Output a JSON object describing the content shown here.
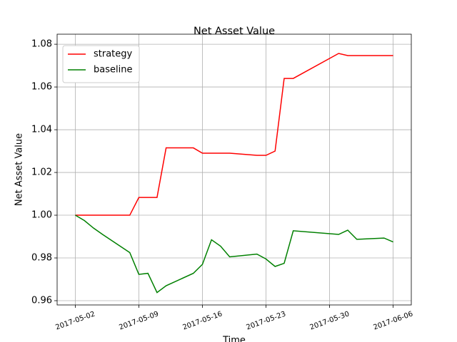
{
  "chart_data": {
    "type": "line",
    "title": "Net Asset Value",
    "x_label": "Time",
    "y_label": "Net Asset Value",
    "x": [
      "2017-05-02",
      "2017-05-03",
      "2017-05-04",
      "2017-05-05",
      "2017-05-08",
      "2017-05-09",
      "2017-05-10",
      "2017-05-11",
      "2017-05-12",
      "2017-05-15",
      "2017-05-16",
      "2017-05-17",
      "2017-05-18",
      "2017-05-19",
      "2017-05-22",
      "2017-05-23",
      "2017-05-24",
      "2017-05-25",
      "2017-05-26",
      "2017-05-31",
      "2017-06-01",
      "2017-06-02",
      "2017-06-05",
      "2017-06-06"
    ],
    "series": [
      {
        "name": "strategy",
        "color": "#ff0000",
        "values": [
          1.0,
          1.0,
          1.0,
          1.0,
          1.0,
          1.0083,
          1.0083,
          1.0083,
          1.0315,
          1.0315,
          1.029,
          1.029,
          1.029,
          1.029,
          1.028,
          1.028,
          1.03,
          1.064,
          1.064,
          1.0757,
          1.0747,
          1.0747,
          1.0747,
          1.0747
        ]
      },
      {
        "name": "baseline",
        "color": "#008000",
        "values": [
          1.0,
          0.9975,
          0.994,
          0.991,
          0.9825,
          0.9723,
          0.9728,
          0.9638,
          0.967,
          0.9728,
          0.977,
          0.9885,
          0.9855,
          0.9805,
          0.9818,
          0.9795,
          0.976,
          0.9775,
          0.9927,
          0.991,
          0.993,
          0.9887,
          0.9893,
          0.9875
        ]
      }
    ],
    "xlim": [
      "2017-04-30",
      "2017-06-08"
    ],
    "xticks": [
      "2017-05-02",
      "2017-05-09",
      "2017-05-16",
      "2017-05-23",
      "2017-05-30",
      "2017-06-06"
    ],
    "ylim": [
      0.958,
      1.0847
    ],
    "yticks": [
      {
        "value": 0.96,
        "label": "0.96"
      },
      {
        "value": 0.98,
        "label": "0.98"
      },
      {
        "value": 1.0,
        "label": "1.00"
      },
      {
        "value": 1.02,
        "label": "1.02"
      },
      {
        "value": 1.04,
        "label": "1.04"
      },
      {
        "value": 1.06,
        "label": "1.06"
      },
      {
        "value": 1.08,
        "label": "1.08"
      }
    ],
    "grid": true,
    "legend_position": "upper-left"
  }
}
